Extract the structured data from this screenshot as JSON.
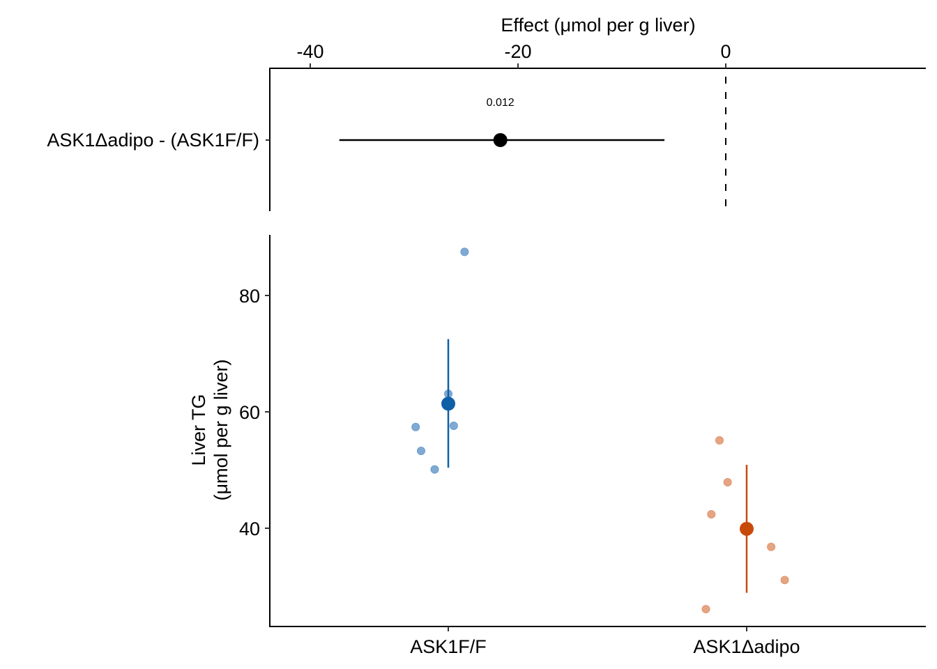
{
  "chart_data": [
    {
      "type": "forest",
      "panel": "effect",
      "xlabel": "Effect (μmol per g liver)",
      "xlim": [
        -46,
        19
      ],
      "xticks": [
        -40,
        -20,
        0
      ],
      "xtick_labels": [
        "-40",
        "-20",
        "0"
      ],
      "reference_line": 0,
      "rows": [
        {
          "label": "ASK1Δadipo - (ASK1F/F)",
          "estimate": -21.7,
          "ci_low": -37.2,
          "ci_high": -5.9,
          "p_value_label": "0.012"
        }
      ]
    },
    {
      "type": "scatter",
      "panel": "response",
      "ylabel_lines": [
        "Liver TG",
        "(μmol per g liver)"
      ],
      "ylim": [
        23,
        90
      ],
      "yticks": [
        40,
        60,
        80
      ],
      "ytick_labels": [
        "40",
        "60",
        "80"
      ],
      "categories": [
        "ASK1F/F",
        "ASK1Δadipo"
      ],
      "groups": [
        {
          "name": "ASK1F/F",
          "color": "#0F5FA6",
          "point_color": "#6A9BCB",
          "mean": 61.4,
          "ci_low": 50.4,
          "ci_high": 72.5,
          "points": [
            {
              "jitter": 0.06,
              "y": 87.5
            },
            {
              "jitter": 0.0,
              "y": 63.1
            },
            {
              "jitter": -0.12,
              "y": 57.4
            },
            {
              "jitter": 0.02,
              "y": 57.6
            },
            {
              "jitter": -0.1,
              "y": 53.3
            },
            {
              "jitter": -0.05,
              "y": 50.1
            }
          ]
        },
        {
          "name": "ASK1Δadipo",
          "color": "#C84A0A",
          "point_color": "#E0956D",
          "mean": 39.9,
          "ci_low": 28.9,
          "ci_high": 50.9,
          "points": [
            {
              "jitter": -0.1,
              "y": 55.1
            },
            {
              "jitter": -0.07,
              "y": 47.9
            },
            {
              "jitter": -0.13,
              "y": 42.4
            },
            {
              "jitter": 0.09,
              "y": 36.8
            },
            {
              "jitter": 0.14,
              "y": 31.1
            },
            {
              "jitter": -0.15,
              "y": 26.1
            }
          ]
        }
      ]
    }
  ]
}
